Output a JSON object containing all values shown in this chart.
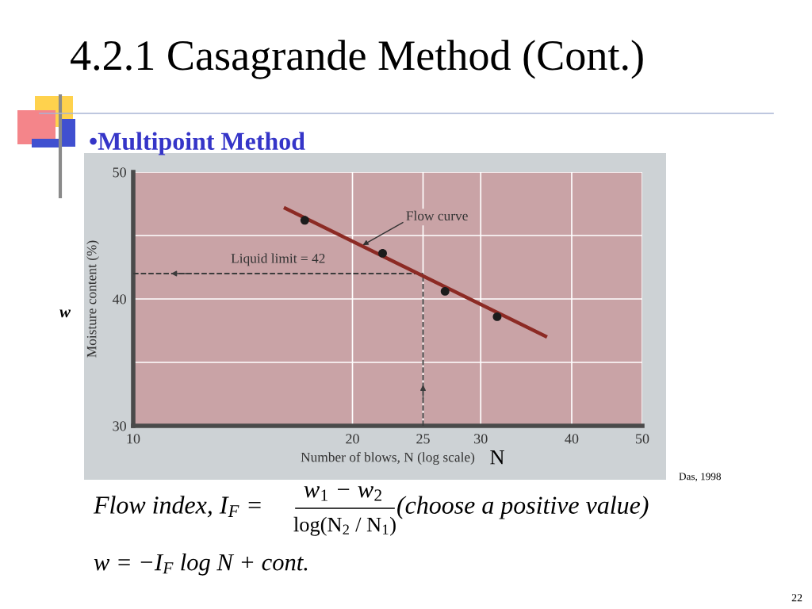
{
  "chart_data": {
    "type": "scatter",
    "title": "4.2.1 Casagrande Method (Cont.)",
    "subtitle": "•Multipoint Method",
    "xlabel": "Number of blows, N (log scale)",
    "ylabel": "Moisture content (%)",
    "series": [
      {
        "color": "#1c1c1c",
        "marker": "circle",
        "x": [
          17.2,
          22,
          26.8,
          31.6
        ],
        "values": [
          46.2,
          43.6,
          40.6,
          38.6
        ]
      },
      {
        "type": "line",
        "color": "#8c2a24",
        "x": [
          16.1,
          37
        ],
        "values": [
          47.2,
          37.0
        ]
      }
    ],
    "log": "x",
    "xlim": [
      10,
      50
    ],
    "ylim": [
      30,
      50
    ],
    "xticks": [
      10,
      20,
      25,
      30,
      40,
      50
    ],
    "yticks": [
      30,
      {
        "value": 35,
        "label": null
      },
      40,
      {
        "value": 45,
        "label": null
      },
      50
    ],
    "grid": true,
    "ref_lines": [
      {
        "axis": "y",
        "value": 42,
        "label": "Liquid limit = 42",
        "line_style": "dashed",
        "color": "#3c3c3c"
      },
      {
        "axis": "x",
        "value": 25,
        "line_style": "dashed",
        "color": "#3c3c3c"
      }
    ],
    "annotations": [
      {
        "text": "Flow curve",
        "x": 20.6,
        "y": 44.2
      },
      "w",
      "N",
      "Das, 1998",
      "Flow index, I$_{F}$ =",
      "w$_{1}$ − w$_{2}$",
      "log(N$_{2}$ / N$_{1}$)",
      "(choose a positive value)",
      "w = −I$_{F}$ log N + cont.",
      "22"
    ]
  }
}
